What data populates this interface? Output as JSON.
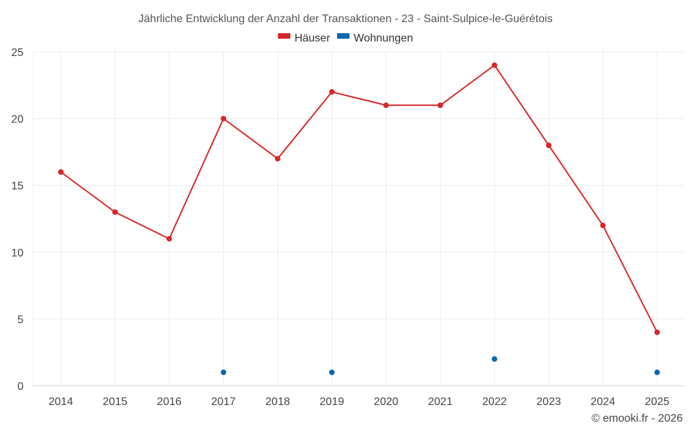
{
  "chart_data": {
    "type": "line",
    "title": "Jährliche Entwicklung der Anzahl der Transaktionen - 23 - Saint-Sulpice-le-Guérétois",
    "categories": [
      "2014",
      "2015",
      "2016",
      "2017",
      "2018",
      "2019",
      "2020",
      "2021",
      "2022",
      "2023",
      "2024",
      "2025"
    ],
    "series": [
      {
        "name": "Häuser",
        "color": "#d62728",
        "style": "line-with-markers",
        "values": [
          16,
          13,
          11,
          20,
          17,
          22,
          21,
          21,
          24,
          18,
          12,
          4
        ]
      },
      {
        "name": "Wohnungen",
        "color": "#0868ac",
        "style": "markers-only",
        "values": [
          null,
          null,
          null,
          1,
          null,
          1,
          null,
          null,
          2,
          null,
          null,
          1
        ]
      }
    ],
    "ylim": [
      0,
      25
    ],
    "yticks": [
      0,
      5,
      10,
      15,
      20,
      25
    ],
    "grid": true,
    "legend_position": "top-center",
    "xlabel": "",
    "ylabel": ""
  },
  "credit": "© emooki.fr - 2026"
}
